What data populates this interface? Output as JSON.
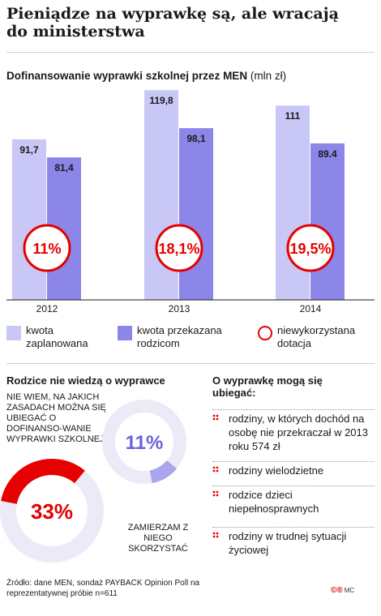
{
  "header": {
    "title": "Pieniądze na wyprawkę są, ale wracają do ministerstwa"
  },
  "chart_data": [
    {
      "type": "bar",
      "title": "Dofinansowanie wyprawki szkolnej przez MEN",
      "unit": "(mln zł)",
      "categories": [
        "2012",
        "2013",
        "2014"
      ],
      "series": [
        {
          "name": "kwota zaplanowana",
          "values": [
            91.7,
            119.8,
            111
          ],
          "labels": [
            "91,7",
            "119,8",
            "111"
          ],
          "color": "#c9c7f5"
        },
        {
          "name": "kwota przekazana rodzicom",
          "values": [
            81.4,
            98.1,
            89.4
          ],
          "labels": [
            "81,4",
            "98,1",
            "89.4"
          ],
          "color": "#8c86e8"
        }
      ],
      "unused_share": {
        "name": "niewykorzystana dotacja",
        "labels": [
          "11%",
          "18,1%",
          "19,5%"
        ],
        "color": "#e60000"
      },
      "ylim": [
        0,
        125
      ]
    },
    {
      "type": "pie",
      "title": "Rodzice nie wiedzą o wyprawce",
      "values": [
        33,
        11
      ],
      "slice_labels": [
        "33%",
        "11%"
      ],
      "descriptions": [
        "NIE WIEM, NA JAKICH ZASADACH MOŻNA SIĘ UBIEGAĆ O DOFINANSO-WANIE WYPRAWKI SZKOLNEJ",
        "ZAMIERZAM Z NIEGO SKORZYSTAĆ"
      ],
      "colors": [
        "#e60000",
        "#a9a6ee"
      ]
    }
  ],
  "eligibility": {
    "title": "O wyprawkę mogą się ubiegać:",
    "items": [
      "rodziny, w których dochód na osobę nie przekraczał w 2013 roku 574 zł",
      "rodziny wielodzietne",
      "rodzice dzieci niepełnosprawnych",
      "rodziny w trudnej sytuacji życiowej"
    ]
  },
  "footer": {
    "source": "Źródło: dane MEN, sondaż PAYBACK Opinion Poll na reprezentatywnej próbie n=611",
    "logo": "MC"
  },
  "colors": {
    "accent": "#e60000",
    "light_bar": "#c9c7f5",
    "dark_bar": "#8c86e8",
    "donut_track": "#eceaf6"
  }
}
